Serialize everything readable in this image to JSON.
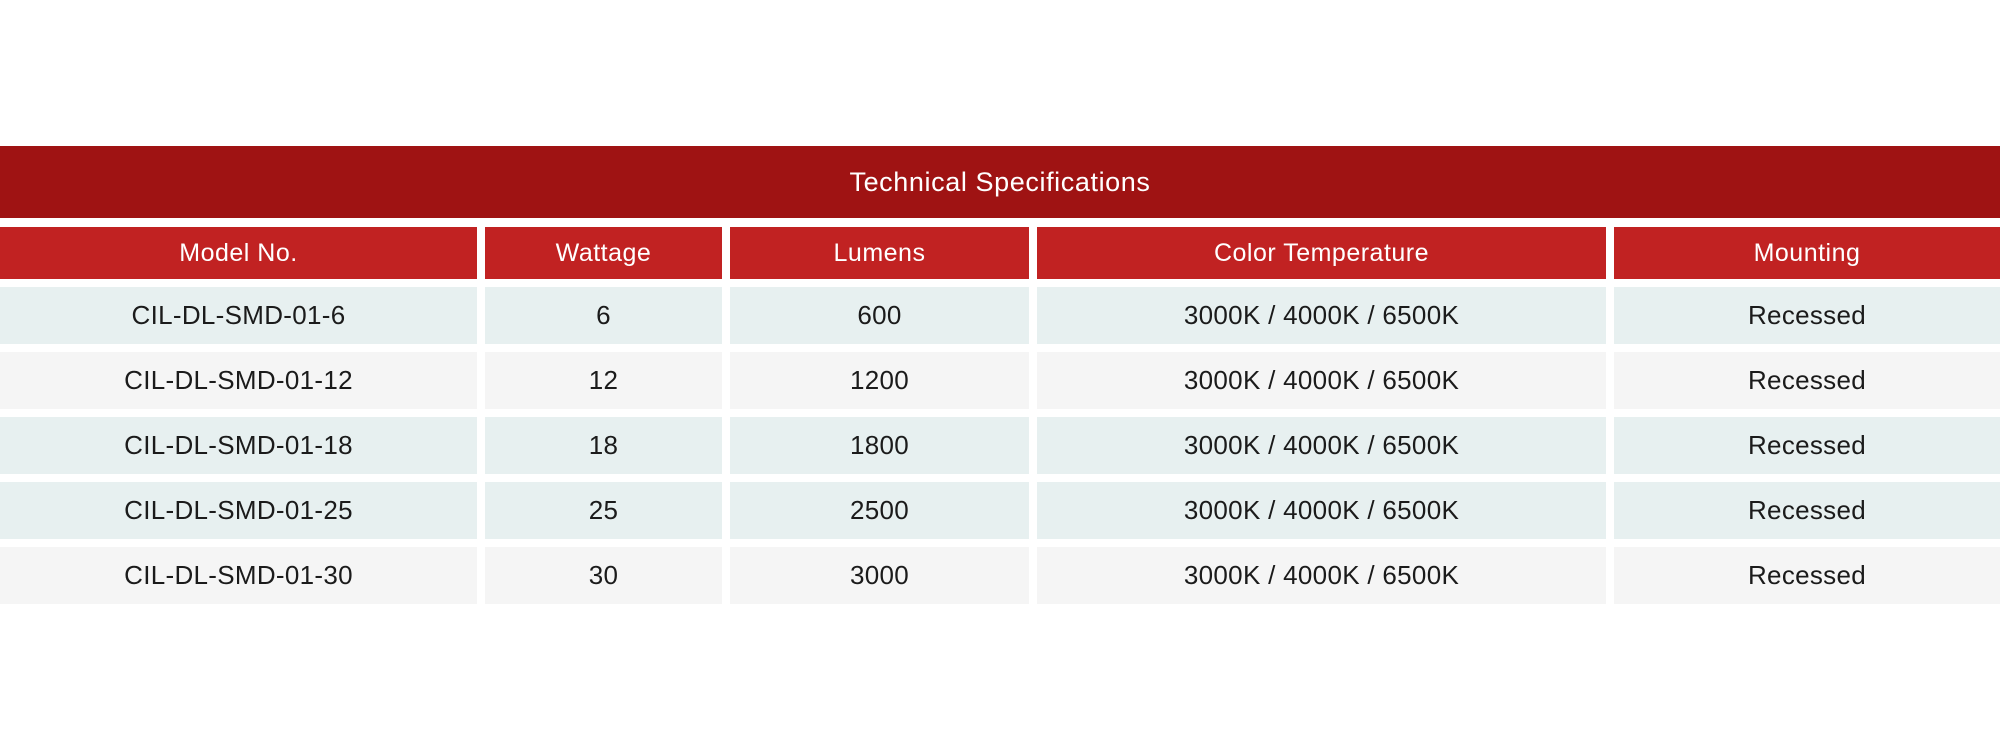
{
  "colors": {
    "banner_red": "#9f1313",
    "header_red": "#c12222",
    "row_tint": "#e7f0f0",
    "row_plain": "#f5f5f5",
    "text_dark": "#1b1b1b",
    "text_light": "#ffffff",
    "page_background": "#ffffff"
  },
  "table": {
    "title": "Technical Specifications",
    "columns": [
      "Model No.",
      "Wattage",
      "Lumens",
      "Color Temperature",
      "Mounting"
    ],
    "rows": [
      {
        "model": "CIL-DL-SMD-01-6",
        "wattage": "6",
        "lumens": "600",
        "color_temperature": "3000K / 4000K / 6500K",
        "mounting": "Recessed",
        "shade": "tint"
      },
      {
        "model": "CIL-DL-SMD-01-12",
        "wattage": "12",
        "lumens": "1200",
        "color_temperature": "3000K / 4000K / 6500K",
        "mounting": "Recessed",
        "shade": "plain"
      },
      {
        "model": "CIL-DL-SMD-01-18",
        "wattage": "18",
        "lumens": "1800",
        "color_temperature": "3000K / 4000K / 6500K",
        "mounting": "Recessed",
        "shade": "tint"
      },
      {
        "model": "CIL-DL-SMD-01-25",
        "wattage": "25",
        "lumens": "2500",
        "color_temperature": "3000K / 4000K / 6500K",
        "mounting": "Recessed",
        "shade": "tint"
      },
      {
        "model": "CIL-DL-SMD-01-30",
        "wattage": "30",
        "lumens": "3000",
        "color_temperature": "3000K / 4000K / 6500K",
        "mounting": "Recessed",
        "shade": "plain"
      }
    ]
  },
  "chart_data": {
    "type": "table",
    "title": "Technical Specifications",
    "columns": [
      "Model No.",
      "Wattage",
      "Lumens",
      "Color Temperature",
      "Mounting"
    ],
    "rows": [
      [
        "CIL-DL-SMD-01-6",
        6,
        600,
        "3000K / 4000K / 6500K",
        "Recessed"
      ],
      [
        "CIL-DL-SMD-01-12",
        12,
        1200,
        "3000K / 4000K / 6500K",
        "Recessed"
      ],
      [
        "CIL-DL-SMD-01-18",
        18,
        1800,
        "3000K / 4000K / 6500K",
        "Recessed"
      ],
      [
        "CIL-DL-SMD-01-25",
        25,
        2500,
        "3000K / 4000K / 6500K",
        "Recessed"
      ],
      [
        "CIL-DL-SMD-01-30",
        30,
        3000,
        "3000K / 4000K / 6500K",
        "Recessed"
      ]
    ]
  }
}
